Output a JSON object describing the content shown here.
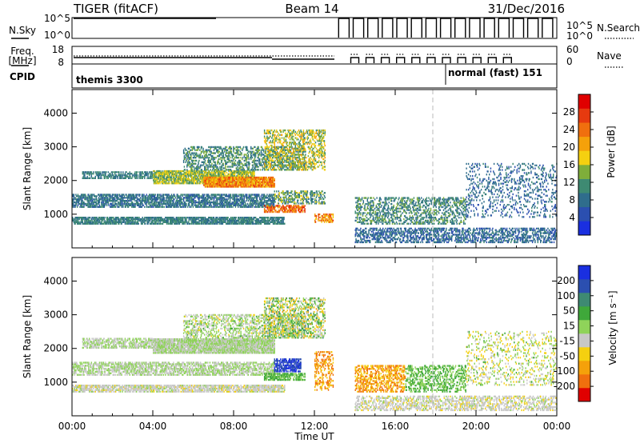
{
  "header": {
    "radar": "TIGER (fitACF)",
    "beam": "Beam 14",
    "date": "31/Dec/2016"
  },
  "control_panels": {
    "nsky_label": "N.Sky",
    "nsky_ticks": [
      "10^5",
      "10^0"
    ],
    "nsearch_label": "N.Search",
    "freq_label_1": "Freq.",
    "freq_label_2": "[MHz]",
    "freq_ticks": [
      "18",
      "8"
    ],
    "nave_label": "Nave",
    "nave_ticks": [
      "60",
      "0"
    ],
    "cpid_label": "CPID",
    "cpid_1": "themis 3300",
    "cpid_2": "normal (fast) 151"
  },
  "colors": {
    "power_scale": [
      "#1a2fe0",
      "#2b4fb0",
      "#2f6d8c",
      "#3e8a72",
      "#7fae3a",
      "#f5d010",
      "#f5a10a",
      "#f06f0e",
      "#e63a0f",
      "#e00000"
    ],
    "velocity_scale": [
      "#e00000",
      "#f06f0e",
      "#f5a10a",
      "#f5d010",
      "#c8c8c8",
      "#8fd35a",
      "#3fa83a",
      "#3e8a72",
      "#2b4fb0",
      "#1a2fe0"
    ]
  },
  "chart_data": [
    {
      "type": "heatmap",
      "name": "power",
      "xlabel": "Time UT",
      "ylabel": "Slant Range [km]",
      "x_ticks": [
        "00:00",
        "04:00",
        "08:00",
        "12:00",
        "16:00",
        "20:00",
        "00:00"
      ],
      "xlim": [
        0,
        24
      ],
      "ylim": [
        0,
        4700
      ],
      "y_ticks": [
        1000,
        2000,
        3000,
        4000
      ],
      "colorbar_label": "Power [dB]",
      "colorbar_ticks": [
        "28",
        "24",
        "20",
        "16",
        "12",
        "8",
        "4"
      ],
      "clim": [
        0,
        30
      ],
      "regions": [
        {
          "t0": 0.0,
          "t1": 10.5,
          "r0": 700,
          "r1": 900,
          "v0": 6,
          "v1": 12,
          "density": 0.7
        },
        {
          "t0": 0.0,
          "t1": 10.0,
          "r0": 1200,
          "r1": 1600,
          "v0": 5,
          "v1": 11,
          "density": 0.6
        },
        {
          "t0": 0.5,
          "t1": 4.0,
          "r0": 2050,
          "r1": 2250,
          "v0": 6,
          "v1": 12,
          "density": 0.5
        },
        {
          "t0": 4.0,
          "t1": 9.0,
          "r0": 1900,
          "r1": 2300,
          "v0": 10,
          "v1": 18,
          "density": 0.7
        },
        {
          "t0": 6.5,
          "t1": 10.0,
          "r0": 1800,
          "r1": 2100,
          "v0": 16,
          "v1": 26,
          "density": 0.8
        },
        {
          "t0": 5.5,
          "t1": 11.5,
          "r0": 2300,
          "r1": 3000,
          "v0": 6,
          "v1": 14,
          "density": 0.35
        },
        {
          "t0": 9.5,
          "t1": 12.5,
          "r0": 2300,
          "r1": 3500,
          "v0": 10,
          "v1": 20,
          "density": 0.35
        },
        {
          "t0": 9.5,
          "t1": 11.5,
          "r0": 1050,
          "r1": 1250,
          "v0": 18,
          "v1": 28,
          "density": 0.6
        },
        {
          "t0": 10.0,
          "t1": 12.5,
          "r0": 1300,
          "r1": 1700,
          "v0": 6,
          "v1": 16,
          "density": 0.4
        },
        {
          "t0": 12.0,
          "t1": 12.9,
          "r0": 750,
          "r1": 1000,
          "v0": 16,
          "v1": 26,
          "density": 0.5
        },
        {
          "t0": 14.0,
          "t1": 24.0,
          "r0": 150,
          "r1": 600,
          "v0": 4,
          "v1": 10,
          "density": 0.4
        },
        {
          "t0": 14.0,
          "t1": 19.5,
          "r0": 700,
          "r1": 1500,
          "v0": 6,
          "v1": 14,
          "density": 0.35
        },
        {
          "t0": 19.5,
          "t1": 24.0,
          "r0": 900,
          "r1": 2500,
          "v0": 4,
          "v1": 10,
          "density": 0.15
        }
      ]
    },
    {
      "type": "heatmap",
      "name": "velocity",
      "xlabel": "Time UT",
      "ylabel": "Slant Range [km]",
      "x_ticks": [
        "00:00",
        "04:00",
        "08:00",
        "12:00",
        "16:00",
        "20:00",
        "00:00"
      ],
      "xlim": [
        0,
        24
      ],
      "ylim": [
        0,
        4700
      ],
      "y_ticks": [
        1000,
        2000,
        3000,
        4000
      ],
      "colorbar_label": "Velocity [m s⁻¹]",
      "colorbar_ticks": [
        "200",
        "100",
        "50",
        "15",
        "-15",
        "-50",
        "-100",
        "-200"
      ],
      "clim": [
        -250,
        250
      ],
      "regions": [
        {
          "t0": 0.0,
          "t1": 10.5,
          "r0": 700,
          "r1": 900,
          "v0": -60,
          "v1": 10,
          "density": 0.65
        },
        {
          "t0": 0.0,
          "t1": 10.0,
          "r0": 1200,
          "r1": 1600,
          "v0": -15,
          "v1": 15,
          "density": 0.5
        },
        {
          "t0": 0.5,
          "t1": 4.0,
          "r0": 2000,
          "r1": 2300,
          "v0": -15,
          "v1": 15,
          "density": 0.5
        },
        {
          "t0": 4.0,
          "t1": 10.0,
          "r0": 1850,
          "r1": 2300,
          "v0": -12,
          "v1": 12,
          "density": 0.85
        },
        {
          "t0": 5.5,
          "t1": 11.5,
          "r0": 2300,
          "r1": 3000,
          "v0": -60,
          "v1": 60,
          "density": 0.35
        },
        {
          "t0": 9.5,
          "t1": 12.5,
          "r0": 2300,
          "r1": 3500,
          "v0": -120,
          "v1": 120,
          "density": 0.35
        },
        {
          "t0": 9.5,
          "t1": 11.5,
          "r0": 1050,
          "r1": 1250,
          "v0": 30,
          "v1": 90,
          "density": 0.6
        },
        {
          "t0": 10.0,
          "t1": 11.3,
          "r0": 1300,
          "r1": 1700,
          "v0": 150,
          "v1": 240,
          "density": 0.6
        },
        {
          "t0": 12.0,
          "t1": 12.9,
          "r0": 750,
          "r1": 1900,
          "v0": -200,
          "v1": -60,
          "density": 0.3
        },
        {
          "t0": 14.0,
          "t1": 24.0,
          "r0": 150,
          "r1": 600,
          "v0": -60,
          "v1": 10,
          "density": 0.4
        },
        {
          "t0": 14.0,
          "t1": 16.5,
          "r0": 700,
          "r1": 1500,
          "v0": -200,
          "v1": -60,
          "density": 0.4
        },
        {
          "t0": 16.5,
          "t1": 19.5,
          "r0": 700,
          "r1": 1500,
          "v0": 15,
          "v1": 100,
          "density": 0.35
        },
        {
          "t0": 19.5,
          "t1": 24.0,
          "r0": 900,
          "r1": 2500,
          "v0": -100,
          "v1": 60,
          "density": 0.15
        }
      ]
    }
  ]
}
